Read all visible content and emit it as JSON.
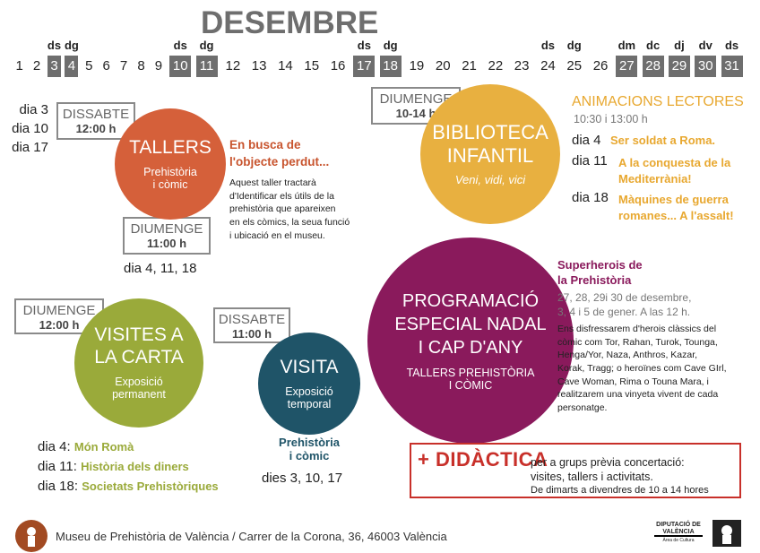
{
  "title": "DESEMBRE",
  "calendar": {
    "days": [
      {
        "day": 1,
        "label": null,
        "highlight": false
      },
      {
        "day": 2,
        "label": null,
        "highlight": false
      },
      {
        "day": 3,
        "label": "ds",
        "highlight": true
      },
      {
        "day": 4,
        "label": "dg",
        "highlight": true
      },
      {
        "day": 5,
        "label": null,
        "highlight": false
      },
      {
        "day": 6,
        "label": null,
        "highlight": false
      },
      {
        "day": 7,
        "label": null,
        "highlight": false
      },
      {
        "day": 8,
        "label": null,
        "highlight": false
      },
      {
        "day": 9,
        "label": null,
        "highlight": false
      },
      {
        "day": 10,
        "label": "ds",
        "highlight": true
      },
      {
        "day": 11,
        "label": "dg",
        "highlight": true
      },
      {
        "day": 12,
        "label": null,
        "highlight": false
      },
      {
        "day": 13,
        "label": null,
        "highlight": false
      },
      {
        "day": 14,
        "label": null,
        "highlight": false
      },
      {
        "day": 15,
        "label": null,
        "highlight": false
      },
      {
        "day": 16,
        "label": null,
        "highlight": false
      },
      {
        "day": 17,
        "label": "ds",
        "highlight": true
      },
      {
        "day": 18,
        "label": "dg",
        "highlight": true
      },
      {
        "day": 19,
        "label": null,
        "highlight": false
      },
      {
        "day": 20,
        "label": null,
        "highlight": false
      },
      {
        "day": 21,
        "label": null,
        "highlight": false
      },
      {
        "day": 22,
        "label": null,
        "highlight": false
      },
      {
        "day": 23,
        "label": null,
        "highlight": false
      },
      {
        "day": 24,
        "label": "ds",
        "highlight": false
      },
      {
        "day": 25,
        "label": "dg",
        "highlight": false
      },
      {
        "day": 26,
        "label": null,
        "highlight": false
      },
      {
        "day": 27,
        "label": "dm",
        "highlight": true
      },
      {
        "day": 28,
        "label": "dc",
        "highlight": true
      },
      {
        "day": 29,
        "label": "dj",
        "highlight": true
      },
      {
        "day": 30,
        "label": "dv",
        "highlight": true
      },
      {
        "day": 31,
        "label": "ds",
        "highlight": true
      }
    ]
  },
  "tallers": {
    "dates": [
      "dia 3",
      "dia 10",
      "dia 17"
    ],
    "box1": {
      "day": "DISSABTE",
      "time": "12:00 h"
    },
    "title": "TALLERS",
    "subtitle": "Prehistòria\ni còmic",
    "box2": {
      "day": "DIUMENGE",
      "time": "11:00 h"
    },
    "dates2": "dia 4, 11, 18",
    "heading": "En busca de\nl'objecte perdut...",
    "text": "Aquest taller tractarà\nd'Identificar els útils de la\nprehistòria que apareixen\nen els còmics, la seua funció\ni ubicació en el museu."
  },
  "biblioteca": {
    "box": {
      "day": "DIUMENGE",
      "time": "10-14 h"
    },
    "title": "BIBLIOTECA\nINFANTIL",
    "subtitle": "Veni, vidi, vici",
    "heading": "ANIMACIONS LECTORES",
    "time": "10:30 i 13:00 h",
    "items": [
      {
        "date": "dia 4",
        "text": "Ser soldat a Roma."
      },
      {
        "date": "dia 11",
        "text": "A la conquesta de la\nMediterrània!"
      },
      {
        "date": "dia 18",
        "text": "Màquines de guerra\nromanes... A l'assalt!"
      }
    ]
  },
  "visites": {
    "box": {
      "day": "DIUMENGE",
      "time": "12:00 h"
    },
    "title": "VISITES A\nLA CARTA",
    "subtitle": "Exposició\npermanent",
    "items": [
      {
        "date": "dia 4:",
        "text": "Món Romà"
      },
      {
        "date": "dia 11:",
        "text": "Història dels diners"
      },
      {
        "date": "dia 18:",
        "text": "Societats Prehistòriques"
      }
    ]
  },
  "visita": {
    "box": {
      "day": "DISSABTE",
      "time": "11:00 h"
    },
    "title": "VISITA",
    "subtitle": "Exposició\ntemporal",
    "heading": "Prehistòria\ni còmic",
    "dates": "dies 3, 10, 17"
  },
  "especial": {
    "title": "PROGRAMACIÓ\nESPECIAL NADAL\nI CAP D'ANY",
    "subtitle": "TALLERS PREHISTÒRIA\nI CÒMIC",
    "heading": "Superherois de\nla Prehistòria",
    "dates": "27, 28, 29i 30 de desembre,\n3, 4 i 5 de gener. A las 12 h.",
    "text": "Ens disfressarem d'herois clàssics del\ncòmic com Tor, Rahan, Turok, Tounga,\nHenga/Yor, Naza, Anthros, Kazar,\nKorak, Tragg; o heroïnes com Cave GIrl,\nCave Woman, Rima o Touna Mara, i\nrealitzarem una vinyeta vivent de cada\npersonatge."
  },
  "didactica": {
    "title": "+ DIDÀCTICA",
    "lines": [
      "per a grups prèvia concertació:",
      "visites, tallers i activitats.",
      "De dimarts a divendres de 10 a 14 hores"
    ]
  },
  "footer": {
    "address": "Museu de Prehistòria de València / Carrer de la Corona, 36, 46003 València",
    "logo": "DIPUTACIÓ DE\nVALÈNCIA",
    "logo_sub": "Àrea de Cultura"
  }
}
